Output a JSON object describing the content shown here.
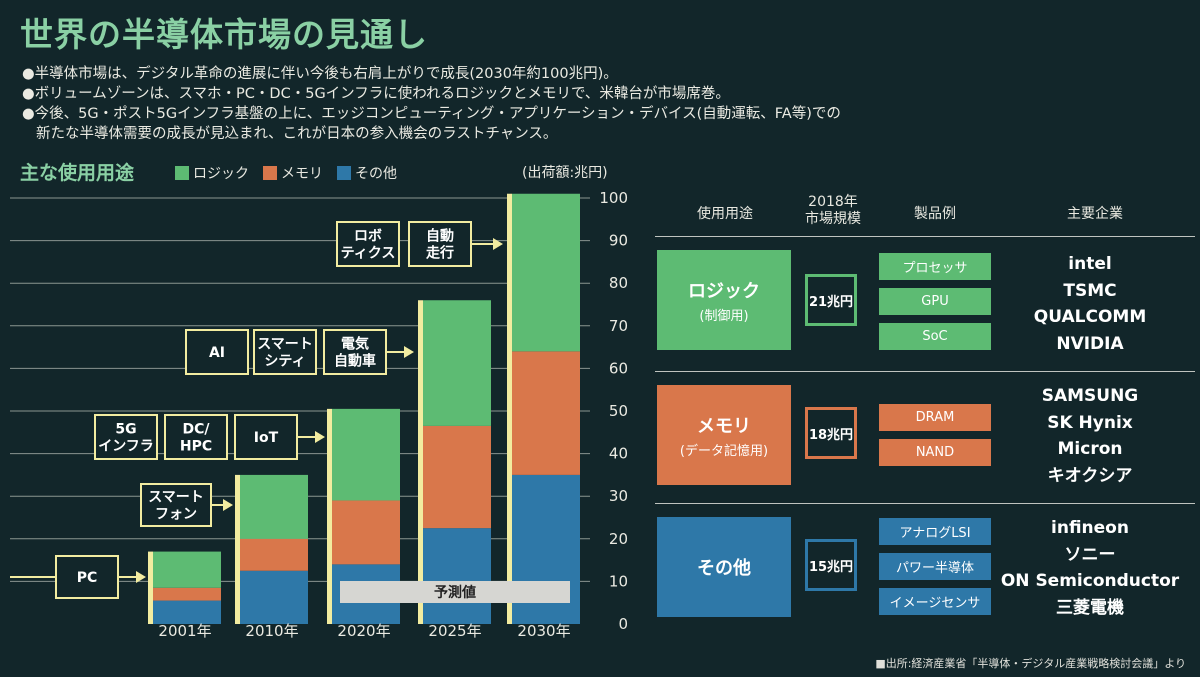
{
  "title": "世界の半導体市場の見通し",
  "bullets": [
    "●半導体市場は、デジタル革命の進展に伴い今後も右肩上がりで成長(2030年約100兆円)。",
    "●ボリュームゾーンは、スマホ・PC・DC・5Gインフラに使われるロジックとメモリで、米韓台が市場席巻。",
    "●今後、5G・ポスト5Gインフラ基盤の上に、エッジコンピューティング・アプリケーション・デバイス(自動運転、FA等)での",
    "新たな半導体需要の成長が見込まれ、これが日本の参入機会のラストチャンス。"
  ],
  "chart_data": {
    "type": "bar",
    "stacked": true,
    "title": "主な使用用途",
    "unit": "(出荷額:兆円)",
    "categories": [
      "2001年",
      "2010年",
      "2020年",
      "2025年",
      "2030年"
    ],
    "series": [
      {
        "name": "その他",
        "color": "#2e78a8",
        "values": [
          5.5,
          12.5,
          14,
          22.5,
          35
        ]
      },
      {
        "name": "メモリ",
        "color": "#d9774b",
        "values": [
          3,
          7.5,
          15,
          24,
          29
        ]
      },
      {
        "name": "ロジック",
        "color": "#5dbb73",
        "values": [
          8.5,
          15,
          21.5,
          29.5,
          37
        ]
      }
    ],
    "ylim": [
      0,
      100
    ],
    "yticks": [
      0,
      10,
      20,
      30,
      40,
      50,
      60,
      70,
      80,
      90,
      100
    ],
    "legend_position": "top",
    "forecast_label": "予測値",
    "annotations": [
      {
        "boxes": [
          "PC"
        ],
        "target": "2001年"
      },
      {
        "boxes": [
          "スマート\nフォン"
        ],
        "target": "2010年"
      },
      {
        "boxes": [
          "5G\nインフラ",
          "DC/\nHPC",
          "IoT"
        ],
        "target": "2020年"
      },
      {
        "boxes": [
          "AI",
          "スマート\nシティ",
          "電気\n自動車"
        ],
        "target": "2025年"
      },
      {
        "boxes": [
          "ロボ\nティクス",
          "自動\n走行"
        ],
        "target": "2030年"
      }
    ]
  },
  "table": {
    "headers": {
      "usage": "使用用途",
      "size": "2018年\n市場規模",
      "products": "製品例",
      "companies": "主要企業"
    },
    "rows": [
      {
        "label": "ロジック",
        "sub": "(制御用)",
        "color": "#5dbb73",
        "size": "21兆円",
        "products": [
          "プロセッサ",
          "GPU",
          "SoC"
        ],
        "companies": [
          "intel",
          "TSMC",
          "QUALCOMM",
          "NVIDIA"
        ]
      },
      {
        "label": "メモリ",
        "sub": "(データ記憶用)",
        "color": "#d9774b",
        "size": "18兆円",
        "products": [
          "DRAM",
          "NAND"
        ],
        "companies": [
          "SAMSUNG",
          "SK Hynix",
          "Micron",
          "キオクシア"
        ]
      },
      {
        "label": "その他",
        "sub": "",
        "color": "#2e78a8",
        "size": "15兆円",
        "products": [
          "アナログLSI",
          "パワー半導体",
          "イメージセンサ"
        ],
        "companies": [
          "infineon",
          "ソニー",
          "ON Semiconductor",
          "三菱電機"
        ]
      }
    ]
  },
  "source": "■出所:経済産業省「半導体・デジタル産業戦略検討会議」より"
}
